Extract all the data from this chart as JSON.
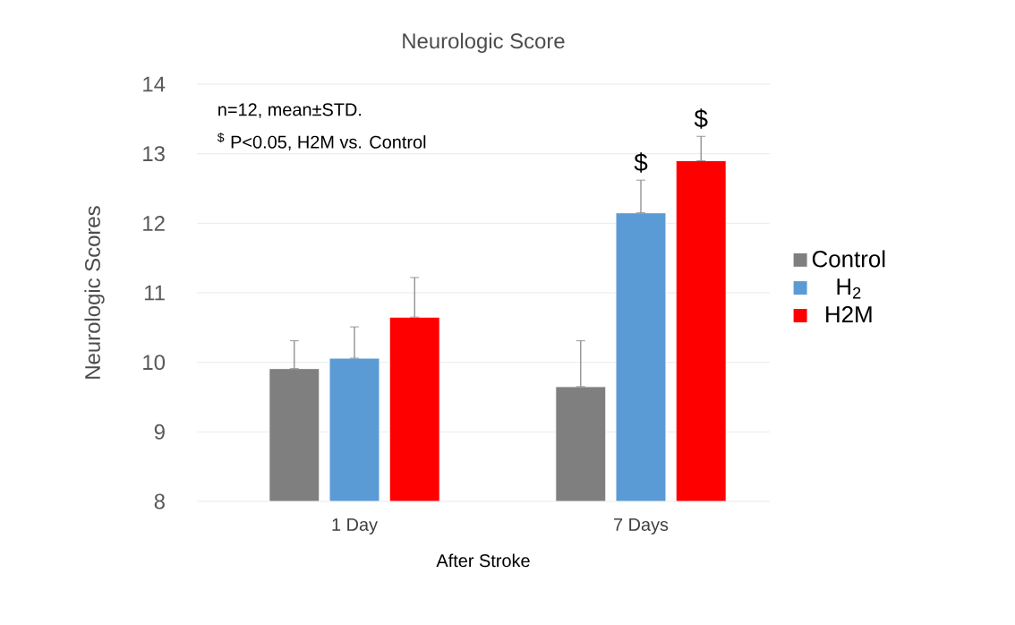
{
  "chart_data": {
    "type": "bar",
    "title": "Neurologic Score",
    "xlabel": "After Stroke",
    "ylabel": "Neurologic Scores",
    "categories": [
      "1 Day",
      "7 Days"
    ],
    "series": [
      {
        "name": "Control",
        "color": "#7f7f7f",
        "values": [
          9.91,
          9.65
        ],
        "errors": [
          [
            9.91,
            10.31
          ],
          [
            9.65,
            10.31
          ]
        ]
      },
      {
        "name": "H$_{2}$",
        "color": "#5b9bd5",
        "values": [
          10.06,
          12.15
        ],
        "errors": [
          [
            10.06,
            10.51
          ],
          [
            12.15,
            12.62
          ]
        ]
      },
      {
        "name": "H2M",
        "color": "#ff0000",
        "values": [
          10.65,
          12.9
        ],
        "errors": [
          [
            10.65,
            11.22
          ],
          [
            12.9,
            13.25
          ]
        ]
      }
    ],
    "ylim": [
      8,
      14
    ],
    "yticks": [
      8,
      9,
      10,
      11,
      12,
      13,
      14
    ],
    "grid": "y",
    "legend": "right",
    "annotations": [
      "n=12, mean±STD.",
      "$^{$}$ P<0.05, H2M vs. Control",
      "$",
      "$"
    ]
  }
}
